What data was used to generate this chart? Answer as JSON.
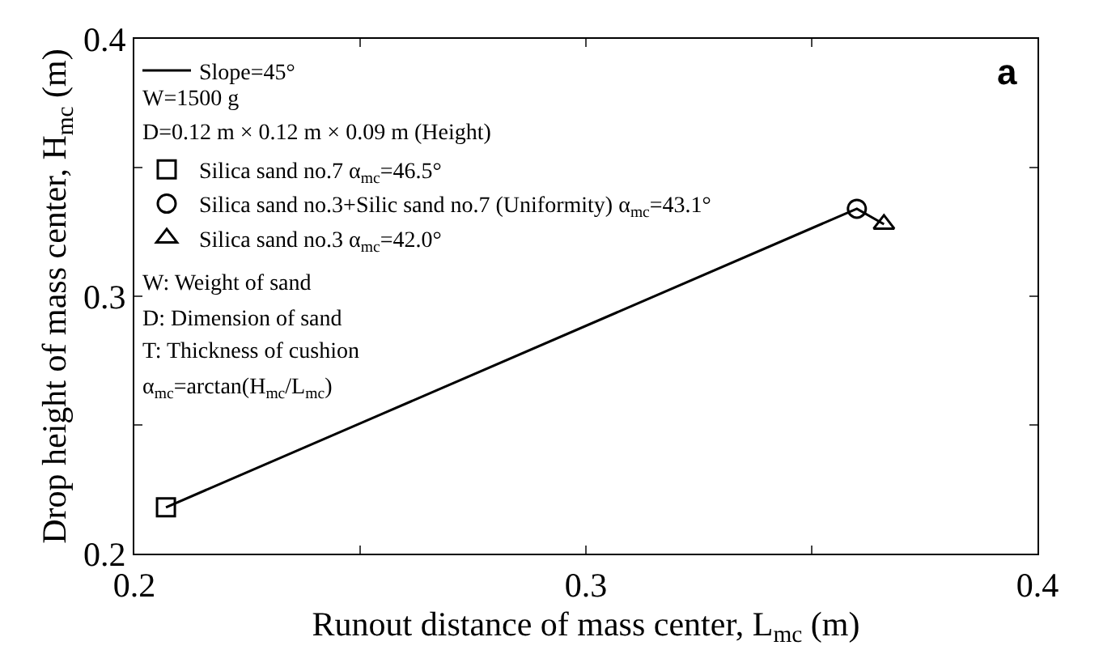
{
  "chart_data": {
    "type": "scatter",
    "xlabel": "Runout distance of mass center, L$_{mc}$ (m)",
    "ylabel": "Drop height of mass center, H$_{mc}$ (m)",
    "xlim": [
      0.2,
      0.4
    ],
    "ylim": [
      0.2,
      0.4
    ],
    "xticks": [
      0.2,
      {
        "value": 0.25,
        "label": null
      },
      0.3,
      {
        "value": 0.35,
        "label": null
      },
      0.4
    ],
    "yticks": [
      0.2,
      {
        "value": 0.25,
        "label": null
      },
      0.3,
      {
        "value": 0.35,
        "label": null
      },
      0.4
    ],
    "legend": "top left",
    "grid": false,
    "series": [
      {
        "name": "Slope=45°",
        "type": "line",
        "color": "#000000",
        "marker": "none",
        "line_style": "solid",
        "x": [
          0.207,
          0.36,
          0.366
        ],
        "values": [
          0.218,
          0.334,
          0.328
        ]
      },
      {
        "name": "Silica sand no.7 α$_{mc}$=46.5°",
        "color": "#000000",
        "marker": "square",
        "x": [
          0.207
        ],
        "values": [
          0.218
        ]
      },
      {
        "name": "Silica sand no.3+Silic sand no.7 (Uniformity) α$_{mc}$=43.1°",
        "color": "#000000",
        "marker": "circle",
        "x": [
          0.36
        ],
        "values": [
          0.334
        ]
      },
      {
        "name": "Silica sand no.3 α$_{mc}$=42.0°",
        "color": "#000000",
        "marker": "triangle",
        "x": [
          0.366
        ],
        "values": [
          0.328
        ]
      }
    ],
    "annotations": [
      "W=1500 g",
      "D=0.12 m × 0.12 m × 0.09 m (Height)",
      "W: Weight of sand",
      "D: Dimension of sand",
      "T: Thickness of cushion",
      "α$_{mc}$=arctan(H$_{mc}$/L$_{mc}$)",
      "a"
    ]
  }
}
